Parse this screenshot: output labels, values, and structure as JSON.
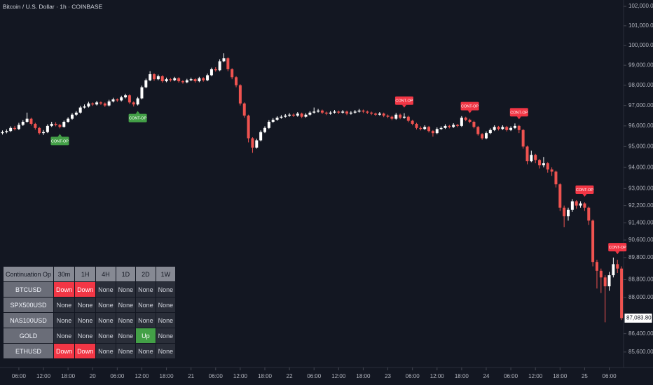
{
  "chart_data": {
    "type": "candlestick",
    "title": "Bitcoin / U.S. Dollar · 1h · COINBASE",
    "open": [
      95650,
      95700,
      95750,
      95900,
      95850,
      96050,
      96200,
      96350,
      96100,
      95900,
      95650,
      95700,
      96000,
      96100,
      96050,
      95950,
      96200,
      96350,
      96550,
      96650,
      96900,
      96950,
      97100,
      97050,
      97150,
      97100,
      97000,
      97200,
      97300,
      97250,
      97400,
      97500,
      97150,
      97050,
      97350,
      97900,
      98250,
      98550,
      98300,
      98450,
      98200,
      98300,
      98250,
      98350,
      98200,
      98150,
      98250,
      98300,
      98200,
      98350,
      98250,
      98500,
      98800,
      98750,
      99200,
      99350,
      98800,
      98400,
      98000,
      97100,
      96500,
      95400,
      94950,
      95300,
      95700,
      95900,
      96200,
      96300,
      96400,
      96450,
      96500,
      96550,
      96500,
      96600,
      96450,
      96550,
      96650,
      96700,
      96750,
      96650,
      96600,
      96650,
      96700,
      96650,
      96700,
      96600,
      96650,
      96700,
      96750,
      96700,
      96650,
      96600,
      96550,
      96600,
      96500,
      96450,
      96350,
      96550,
      96400,
      96450,
      96250,
      96100,
      95900,
      95850,
      95950,
      95750,
      95650,
      95850,
      95900,
      96000,
      95950,
      96050,
      96000,
      96400,
      96300,
      96200,
      95950,
      95600,
      95400,
      95650,
      95800,
      95950,
      95850,
      95950,
      95800,
      95900,
      96000,
      95800,
      95000,
      94300,
      94600,
      94350,
      94100,
      94200,
      93900,
      93800,
      93200,
      92100,
      91700,
      92000,
      92400,
      92200,
      92300,
      92100,
      91500,
      89600,
      89200,
      88900,
      88500,
      89000,
      89500,
      89300
    ],
    "high": [
      95780,
      95830,
      95980,
      96000,
      96150,
      96280,
      96650,
      96400,
      96150,
      95950,
      95800,
      96080,
      96200,
      96180,
      96100,
      96260,
      96420,
      96620,
      96720,
      96980,
      97050,
      97180,
      97150,
      97230,
      97200,
      97150,
      97280,
      97380,
      97350,
      97480,
      97580,
      97550,
      97200,
      97420,
      97980,
      98330,
      98700,
      98600,
      98530,
      98500,
      98380,
      98360,
      98420,
      98400,
      98260,
      98320,
      98380,
      98350,
      98420,
      98400,
      98580,
      98880,
      98900,
      99300,
      99600,
      99400,
      98850,
      98450,
      98050,
      97150,
      96550,
      95450,
      95380,
      95780,
      95980,
      96280,
      96380,
      96470,
      96530,
      96580,
      96620,
      96610,
      96680,
      96650,
      96620,
      96720,
      96900,
      96830,
      96800,
      96700,
      96720,
      96780,
      96750,
      96780,
      96750,
      96720,
      96780,
      96830,
      96800,
      96750,
      96700,
      96650,
      96680,
      96650,
      96560,
      96500,
      96630,
      96600,
      96620,
      96500,
      96300,
      96150,
      95980,
      96030,
      96000,
      95800,
      95930,
      95980,
      96080,
      96050,
      96130,
      96100,
      96480,
      96450,
      96350,
      96250,
      96000,
      95650,
      95730,
      95880,
      96030,
      96000,
      96030,
      96000,
      95980,
      96120,
      96050,
      95850,
      95050,
      94800,
      94650,
      94400,
      94500,
      94250,
      94000,
      93850,
      93250,
      92200,
      92100,
      92500,
      92450,
      92400,
      92350,
      92150,
      91550,
      89700,
      89300,
      89000,
      89150,
      89800,
      89700,
      89400
    ],
    "low": [
      95580,
      95640,
      95700,
      95780,
      95800,
      96000,
      96150,
      96020,
      95820,
      95580,
      95560,
      95650,
      95950,
      95980,
      95880,
      95920,
      96150,
      96300,
      96480,
      96600,
      96850,
      96900,
      96980,
      97000,
      97030,
      96930,
      96950,
      97150,
      97180,
      97200,
      97350,
      97080,
      96950,
      97000,
      97300,
      97850,
      98200,
      98220,
      98250,
      98130,
      98150,
      98180,
      98200,
      98130,
      98080,
      98100,
      98200,
      98130,
      98150,
      98180,
      98200,
      98450,
      98680,
      98700,
      99150,
      98700,
      98300,
      97900,
      97000,
      96400,
      95200,
      94700,
      94900,
      95250,
      95650,
      95850,
      96150,
      96250,
      96350,
      96400,
      96450,
      96440,
      96450,
      96380,
      96400,
      96500,
      96600,
      96650,
      96580,
      96530,
      96550,
      96600,
      96580,
      96600,
      96530,
      96550,
      96600,
      96650,
      96630,
      96580,
      96530,
      96480,
      96500,
      96430,
      96380,
      96280,
      96300,
      96330,
      96350,
      96180,
      96030,
      95830,
      95780,
      95800,
      95680,
      95480,
      95600,
      95800,
      95850,
      95880,
      95900,
      95930,
      95950,
      96230,
      96130,
      95880,
      95530,
      95330,
      95350,
      95600,
      95750,
      95780,
      95800,
      95730,
      95750,
      95850,
      95650,
      94900,
      94150,
      94250,
      94200,
      93950,
      94000,
      93750,
      93600,
      93050,
      91950,
      91200,
      91500,
      91900,
      92050,
      92100,
      91950,
      91300,
      89400,
      88400,
      88200,
      86900,
      88300,
      88900,
      89100,
      87000
    ],
    "close": [
      95700,
      95750,
      95900,
      95850,
      96050,
      96200,
      96350,
      96100,
      95900,
      95650,
      95700,
      96000,
      96100,
      96050,
      95950,
      96200,
      96350,
      96550,
      96650,
      96900,
      96950,
      97100,
      97050,
      97150,
      97100,
      97000,
      97200,
      97300,
      97250,
      97400,
      97500,
      97150,
      97050,
      97350,
      97900,
      98250,
      98550,
      98300,
      98450,
      98200,
      98300,
      98250,
      98350,
      98200,
      98150,
      98250,
      98300,
      98200,
      98350,
      98250,
      98500,
      98800,
      98750,
      99200,
      99350,
      98800,
      98400,
      98000,
      97100,
      96500,
      95400,
      94950,
      95300,
      95700,
      95900,
      96200,
      96300,
      96400,
      96450,
      96500,
      96550,
      96500,
      96600,
      96450,
      96550,
      96650,
      96700,
      96750,
      96650,
      96600,
      96650,
      96700,
      96650,
      96700,
      96600,
      96650,
      96700,
      96750,
      96700,
      96650,
      96600,
      96550,
      96600,
      96500,
      96450,
      96350,
      96550,
      96400,
      96450,
      96250,
      96100,
      95900,
      95850,
      95950,
      95750,
      95650,
      95850,
      95900,
      96000,
      95950,
      96050,
      96000,
      96400,
      96300,
      96200,
      95950,
      95600,
      95400,
      95650,
      95800,
      95950,
      95850,
      95950,
      95800,
      95900,
      96000,
      95800,
      95000,
      94300,
      94600,
      94350,
      94100,
      94200,
      93900,
      93800,
      93200,
      92100,
      91700,
      92000,
      92400,
      92200,
      92300,
      92100,
      91500,
      89600,
      89200,
      88900,
      88500,
      89000,
      89500,
      89300,
      87083.8
    ],
    "last_price_label": "87,083.80",
    "xlim": [
      -0.6,
      151.5
    ],
    "xticks": [
      {
        "value": 4,
        "label": "06:00"
      },
      {
        "value": 10,
        "label": "12:00"
      },
      {
        "value": 16,
        "label": "18:00"
      },
      {
        "value": 22,
        "label": "20"
      },
      {
        "value": 28,
        "label": "06:00"
      },
      {
        "value": 34,
        "label": "12:00"
      },
      {
        "value": 40,
        "label": "18:00"
      },
      {
        "value": 46,
        "label": "21"
      },
      {
        "value": 52,
        "label": "06:00"
      },
      {
        "value": 58,
        "label": "12:00"
      },
      {
        "value": 64,
        "label": "18:00"
      },
      {
        "value": 70,
        "label": "22"
      },
      {
        "value": 76,
        "label": "06:00"
      },
      {
        "value": 82,
        "label": "12:00"
      },
      {
        "value": 88,
        "label": "18:00"
      },
      {
        "value": 94,
        "label": "23"
      },
      {
        "value": 100,
        "label": "06:00"
      },
      {
        "value": 106,
        "label": "12:00"
      },
      {
        "value": 112,
        "label": "18:00"
      },
      {
        "value": 118,
        "label": "24"
      },
      {
        "value": 124,
        "label": "06:00"
      },
      {
        "value": 130,
        "label": "12:00"
      },
      {
        "value": 136,
        "label": "18:00"
      },
      {
        "value": 142,
        "label": "25"
      },
      {
        "value": 148,
        "label": "06:00"
      }
    ],
    "ylim": [
      84930,
      102330
    ],
    "log_scale": true,
    "yticks": [
      {
        "value": 102000,
        "label": "102,000.00"
      },
      {
        "value": 101000,
        "label": "101,000.00"
      },
      {
        "value": 100000,
        "label": "100,000.00"
      },
      {
        "value": 99000,
        "label": "99,000.00"
      },
      {
        "value": 98000,
        "label": "98,000.00"
      },
      {
        "value": 97000,
        "label": "97,000.00"
      },
      {
        "value": 96000,
        "label": "96,000.00"
      },
      {
        "value": 95000,
        "label": "95,000.00"
      },
      {
        "value": 94000,
        "label": "94,000.00"
      },
      {
        "value": 93000,
        "label": "93,000.00"
      },
      {
        "value": 92200,
        "label": "92,200.00"
      },
      {
        "value": 91400,
        "label": "91,400.00"
      },
      {
        "value": 90600,
        "label": "90,600.00"
      },
      {
        "value": 89800,
        "label": "89,800.00"
      },
      {
        "value": 88800,
        "label": "88,800.00"
      },
      {
        "value": 88000,
        "label": "88,000.00"
      },
      {
        "value": 86400,
        "label": "86,400.00"
      },
      {
        "value": 85600,
        "label": "85,600.00"
      }
    ],
    "up_color": "#ffffff",
    "down_color": "#ef5350",
    "signals": [
      {
        "index": 14,
        "text": "CONT-OP",
        "direction": "up",
        "color": "#43a047"
      },
      {
        "index": 33,
        "text": "CONT-OP",
        "direction": "up",
        "color": "#43a047"
      },
      {
        "index": 98,
        "text": "CONT-OP",
        "direction": "down",
        "color": "#f23645"
      },
      {
        "index": 114,
        "text": "CONT-OP",
        "direction": "down",
        "color": "#f23645"
      },
      {
        "index": 126,
        "text": "CONT-OP",
        "direction": "down",
        "color": "#f23645"
      },
      {
        "index": 142,
        "text": "CONT-OP",
        "direction": "down",
        "color": "#f23645"
      },
      {
        "index": 150,
        "text": "CONT-OP",
        "direction": "down",
        "color": "#f23645"
      }
    ]
  },
  "table": {
    "header": [
      "Continuation Op",
      "30m",
      "1H",
      "4H",
      "1D",
      "2D",
      "1W"
    ],
    "rows": [
      [
        "BTCUSD",
        "Down",
        "Down",
        "None",
        "None",
        "None",
        "None"
      ],
      [
        "SPX500USD",
        "None",
        "None",
        "None",
        "None",
        "None",
        "None"
      ],
      [
        "NAS100USD",
        "None",
        "None",
        "None",
        "None",
        "None",
        "None"
      ],
      [
        "GOLD",
        "None",
        "None",
        "None",
        "None",
        "Up",
        "None"
      ],
      [
        "ETHUSD",
        "Down",
        "Down",
        "None",
        "None",
        "None",
        "None"
      ]
    ],
    "cell_colors": {
      "Down": "#f23645",
      "Up": "#43a047"
    }
  }
}
